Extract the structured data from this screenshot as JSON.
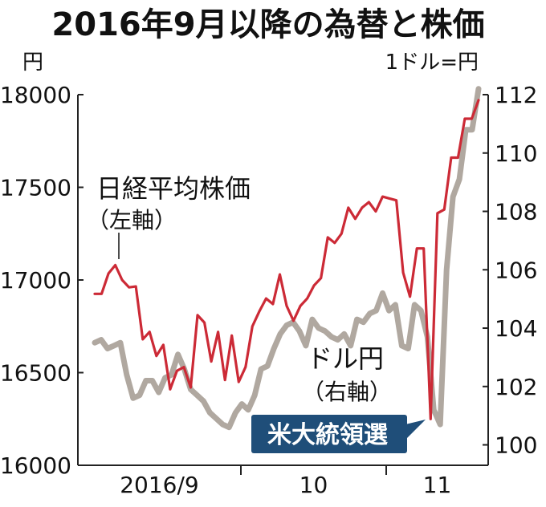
{
  "chart_data": {
    "type": "line",
    "title": "2016年9月以降の為替と株価",
    "left_unit": "円",
    "right_unit": "1ドル=円",
    "left_axis": {
      "range": [
        16000,
        18000
      ],
      "ticks": [
        "18000",
        "17500",
        "17000",
        "16500",
        "16000"
      ]
    },
    "right_axis": {
      "range": [
        99.3,
        112
      ],
      "ticks": [
        "112",
        "110",
        "108",
        "106",
        "104",
        "102",
        "100"
      ]
    },
    "x_labels": [
      "2016/9",
      "10",
      "11"
    ],
    "annotations": {
      "nikkei_label": "日経平均株価",
      "nikkei_sub": "（左軸）",
      "usdjpy_label": "ドル円",
      "usdjpy_sub": "（右軸）",
      "event_badge": "米大統領選"
    },
    "colors": {
      "nikkei": "#cc2a36",
      "usdjpy": "#b0a8a0",
      "badge_bg": "#1f4e79",
      "axis": "#222222"
    },
    "series": [
      {
        "name": "日経平均株価",
        "axis": "left",
        "values": [
          16925,
          16925,
          17035,
          17080,
          17000,
          16960,
          16965,
          16680,
          16720,
          16590,
          16650,
          16410,
          16510,
          16530,
          16420,
          16810,
          16770,
          16560,
          16720,
          16460,
          16700,
          16450,
          16530,
          16750,
          16830,
          16900,
          16870,
          17030,
          16860,
          16780,
          16860,
          16900,
          16970,
          17010,
          17230,
          17200,
          17250,
          17390,
          17330,
          17390,
          17420,
          17370,
          17450,
          17440,
          17430,
          17040,
          16910,
          17170,
          17170,
          16250,
          17360,
          17380,
          17660,
          17660,
          17870,
          17870,
          17970
        ]
      },
      {
        "name": "ドル円",
        "axis": "right",
        "values": [
          103.5,
          103.6,
          103.3,
          103.4,
          103.5,
          102.4,
          101.6,
          101.7,
          102.2,
          102.2,
          101.8,
          102.3,
          102.4,
          103.1,
          102.6,
          101.9,
          101.7,
          101.5,
          101.1,
          100.9,
          100.7,
          100.6,
          101.1,
          101.4,
          101.2,
          101.7,
          102.6,
          102.7,
          103.3,
          103.8,
          104.1,
          104.2,
          103.9,
          103.4,
          104.3,
          104.0,
          103.9,
          103.7,
          103.6,
          103.8,
          103.4,
          104.3,
          104.2,
          104.5,
          104.6,
          105.2,
          104.6,
          104.8,
          103.4,
          103.3,
          104.8,
          104.6,
          103.7,
          101.2,
          100.7,
          106.0,
          108.5,
          109.1,
          110.8,
          110.8,
          112.2
        ]
      }
    ]
  }
}
